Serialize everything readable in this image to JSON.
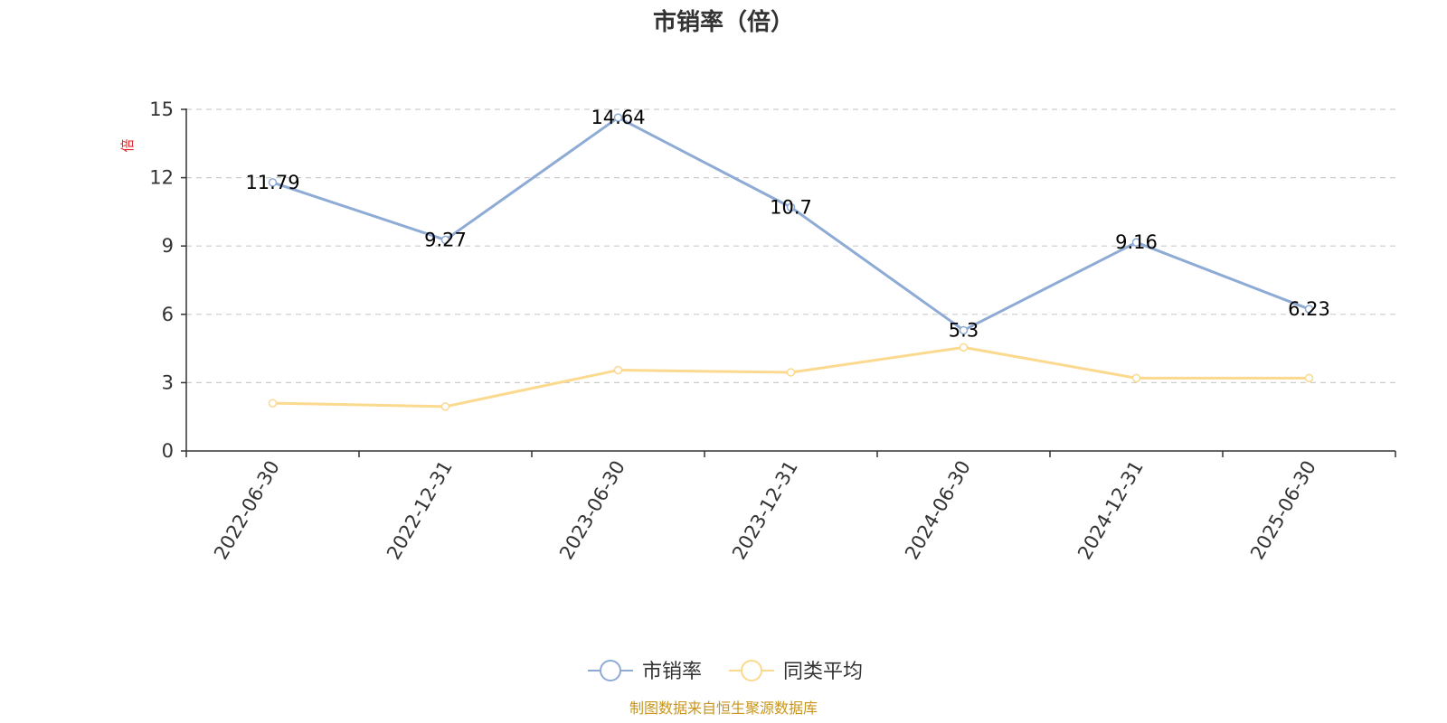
{
  "chart_data": {
    "type": "line",
    "title": "市销率（倍）",
    "ylabel": "倍",
    "xlabel": "",
    "categories": [
      "2022-06-30",
      "2022-12-31",
      "2023-06-30",
      "2023-12-31",
      "2024-06-30",
      "2024-12-31",
      "2025-06-30"
    ],
    "ylim": [
      0,
      15
    ],
    "yticks": [
      0,
      3,
      6,
      9,
      12,
      15
    ],
    "grid": true,
    "legend_position": "bottom-center",
    "series": [
      {
        "name": "市销率",
        "color": "#8eabd5",
        "values": [
          11.79,
          9.27,
          14.64,
          10.7,
          5.3,
          9.16,
          6.23
        ],
        "labels": [
          "11.79",
          "9.27",
          "14.64",
          "10.7",
          "5.3",
          "9.16",
          "6.23"
        ]
      },
      {
        "name": "同类平均",
        "color": "#fbd98f",
        "values": [
          2.1,
          1.95,
          3.55,
          3.45,
          4.55,
          3.2,
          3.2
        ]
      }
    ],
    "source": "制图数据来自恒生聚源数据库"
  }
}
